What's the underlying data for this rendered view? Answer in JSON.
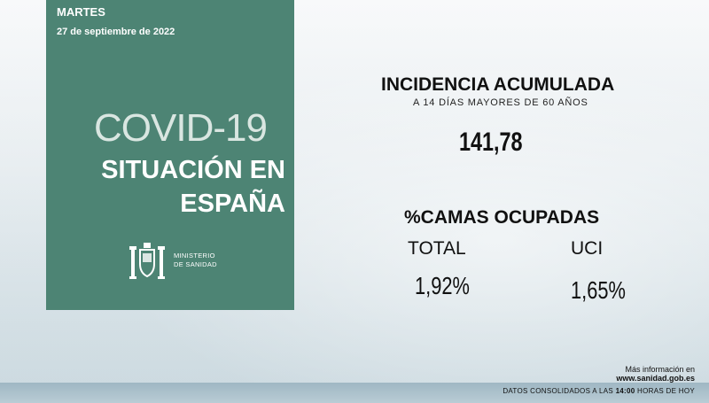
{
  "header": {
    "day": "MARTES",
    "date": "27 de septiembre de 2022"
  },
  "panel": {
    "covid": "COVID-19",
    "title_line1": "SITUACIÓN EN",
    "title_line2": "ESPAÑA",
    "ministry_line1": "MINISTERIO",
    "ministry_line2": "DE SANIDAD",
    "logo_icon": "coat-of-arms-icon",
    "panel_color": "#4d8474"
  },
  "incidence": {
    "title": "INCIDENCIA ACUMULADA",
    "subtitle": "A 14 DÍAS MAYORES DE 60 AÑOS",
    "value": "141,78"
  },
  "beds": {
    "title": "%CAMAS OCUPADAS",
    "total_label": "TOTAL",
    "total_value": "1,92%",
    "uci_label": "UCI",
    "uci_value": "1,65%"
  },
  "footer": {
    "more_info": "Más información en",
    "website": "www.sanidad.gob.es",
    "consolidated_prefix": "DATOS CONSOLIDADOS A LAS ",
    "consolidated_time": "14:00",
    "consolidated_suffix": " HORAS DE HOY"
  }
}
